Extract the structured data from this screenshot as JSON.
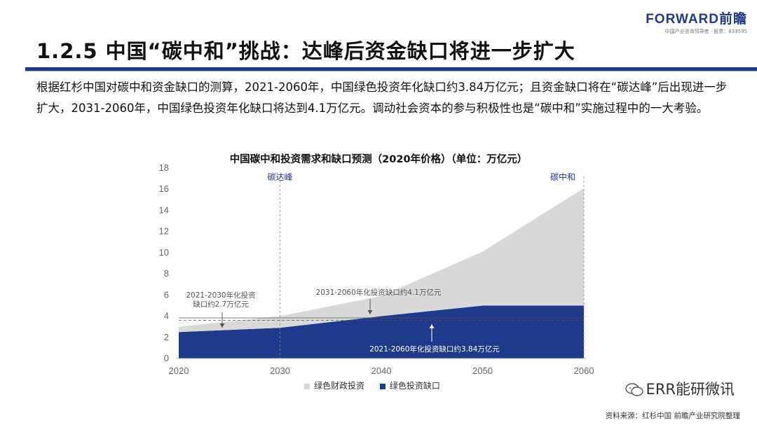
{
  "brand": {
    "name": "FORWARD前瞻",
    "sub": "中国产业咨询领导者 · 股票：833595"
  },
  "title": "1.2.5 中国“碳中和”挑战：达峰后资金缺口将进一步扩大",
  "paragraph": "根据红杉中国对碳中和资金缺口的测算，2021-2060年，中国绿色投资年化缺口约3.84万亿元；且资金缺口将在“碳达峰”后出现进一步扩大，2031-2060年，中国绿色投资年化缺口将达到4.1万亿元。调动社会资本的参与积极性也是“碳中和”实施过程中的一大考验。",
  "source": "资料来源：红杉中国 前瞻产业研究院整理",
  "wechat": "ERR能研微讯",
  "colors": {
    "fiscal": "#d9d9d9",
    "gap": "#1f3a8a",
    "accent": "#1f3a8a"
  },
  "chart_data": {
    "type": "area",
    "title": "中国碳中和投资需求和缺口预测（2020年价格）（单位：万亿元）",
    "x": [
      2020,
      2030,
      2040,
      2050,
      2060
    ],
    "x_ticks": [
      "2020",
      "2030",
      "2040",
      "2050",
      "2060"
    ],
    "y_ticks": [
      "0",
      "2",
      "4",
      "6",
      "8",
      "10",
      "12",
      "14",
      "16",
      "18"
    ],
    "ylim": [
      0,
      18
    ],
    "stacked": true,
    "series": [
      {
        "name": "绿色投资缺口",
        "values": [
          2.5,
          2.9,
          4.0,
          5.0,
          5.0
        ],
        "color": "#1f3a8a"
      },
      {
        "name": "绿色财政投资",
        "values": [
          0.5,
          1.1,
          1.9,
          5.1,
          11.1
        ],
        "color": "#d9d9d9"
      }
    ],
    "legend": [
      "绿色财政投资",
      "绿色投资缺口"
    ],
    "legend_position": "bottom",
    "markers": [
      {
        "x": 2030,
        "label": "碳达峰"
      },
      {
        "x": 2060,
        "label": "碳中和"
      }
    ],
    "reference_lines": [
      {
        "y": 3.84,
        "style": "solid"
      },
      {
        "y": 3.6,
        "style": "dashed"
      }
    ],
    "annotations": [
      {
        "text_lines": [
          "2021-2030年化投资",
          "缺口约2.7万亿元"
        ]
      },
      {
        "text_lines": [
          "2031-2060年化投资缺口约4.1万亿元"
        ]
      },
      {
        "text_lines": [
          "2021-2060年化投资缺口约3.84万亿元"
        ]
      }
    ]
  }
}
